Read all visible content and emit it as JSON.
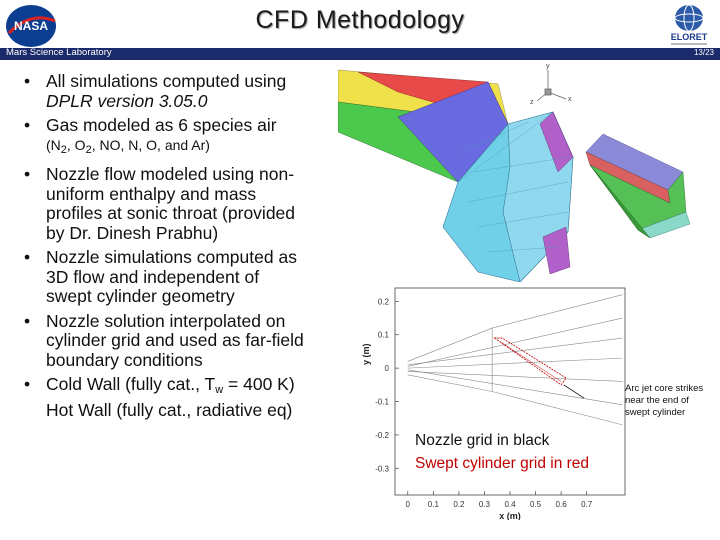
{
  "header": {
    "title": "CFD Methodology",
    "lab": "Mars Science Laboratory",
    "page": "13/23",
    "nasa_logo_text": "NASA",
    "eloret_logo_text": "ELORET"
  },
  "bullets": [
    {
      "lines": [
        "All simulations computed using",
        "DPLR version 3.05.0"
      ]
    },
    {
      "line1": "Gas modeled as 6 species air",
      "open": "(N",
      "n2_sub": "2",
      "comma1": ", O",
      "o2_sub": "2",
      "rest": ", NO, N, O, and Ar)"
    },
    {
      "lines": [
        "Nozzle flow modeled using non-",
        "uniform enthalpy and mass",
        "profiles at sonic throat (provided",
        "by Dr. Dinesh Prabhu)"
      ]
    },
    {
      "lines": [
        "Nozzle simulations computed as",
        "3D flow and independent of",
        "swept cylinder geometry"
      ]
    },
    {
      "lines": [
        "Nozzle solution interpolated on",
        "cylinder grid and used as far-field",
        "boundary conditions"
      ]
    },
    {
      "line1_pre": "Cold Wall (fully cat., T",
      "line1_sub": "w",
      "line1_post": " = 400 K)",
      "line2": "Hot Wall (fully cat., radiative eq)"
    }
  ],
  "axes3d": {
    "y": "y",
    "x": "x",
    "z": "z"
  },
  "chart_data": {
    "type": "line",
    "xlabel": "x (m)",
    "ylabel": "y (m)",
    "xlim": [
      -0.05,
      0.85
    ],
    "ylim": [
      -0.38,
      0.24
    ],
    "x_ticks": [
      "0",
      "0.1",
      "0.2",
      "0.3",
      "0.4",
      "0.5",
      "0.6",
      "0.7"
    ],
    "y_ticks": [
      "0.2",
      "0.1",
      "0",
      "-0.1",
      "-0.2",
      "-0.3"
    ],
    "legend": [
      "Nozzle grid in black",
      "Swept cylinder grid in red"
    ],
    "annotation": "Arc jet core strikes near the end of swept cylinder"
  },
  "colors": {
    "header_bar": "#1a2a6a",
    "legend_red": "#c00000",
    "nasa_blue": "#0b3d91"
  }
}
